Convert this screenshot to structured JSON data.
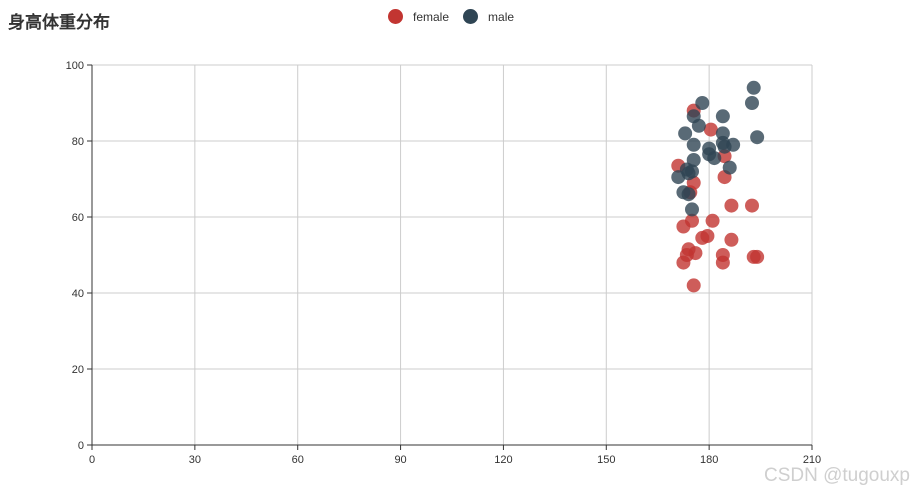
{
  "chart_data": {
    "type": "scatter",
    "title": "身高体重分布",
    "xlabel": "",
    "ylabel": "",
    "xlim": [
      0,
      210
    ],
    "ylim": [
      0,
      100
    ],
    "xticks": [
      0,
      30,
      60,
      90,
      120,
      150,
      180,
      210
    ],
    "yticks": [
      0,
      20,
      40,
      60,
      80,
      100
    ],
    "grid": true,
    "legend_position": "top-center",
    "series": [
      {
        "name": "female",
        "color": "#c23531",
        "points": [
          [
            175.5,
            88
          ],
          [
            180.5,
            83
          ],
          [
            184.5,
            76
          ],
          [
            171,
            73.5
          ],
          [
            184.5,
            70.5
          ],
          [
            175.5,
            69
          ],
          [
            174.5,
            66.5
          ],
          [
            186.5,
            63
          ],
          [
            192.5,
            63
          ],
          [
            175,
            59
          ],
          [
            181,
            59
          ],
          [
            172.5,
            57.5
          ],
          [
            178,
            54.5
          ],
          [
            179.5,
            55
          ],
          [
            186.5,
            54
          ],
          [
            174,
            51.5
          ],
          [
            176,
            50.5
          ],
          [
            173.5,
            50
          ],
          [
            184,
            50
          ],
          [
            193,
            49.5
          ],
          [
            194,
            49.5
          ],
          [
            172.5,
            48
          ],
          [
            184,
            48
          ],
          [
            175.5,
            42
          ]
        ]
      },
      {
        "name": "male",
        "color": "#2f4554",
        "points": [
          [
            193,
            94
          ],
          [
            178,
            90
          ],
          [
            192.5,
            90
          ],
          [
            175.5,
            86.5
          ],
          [
            184,
            86.5
          ],
          [
            177,
            84
          ],
          [
            173,
            82
          ],
          [
            184,
            82
          ],
          [
            194,
            81
          ],
          [
            184,
            79.5
          ],
          [
            187,
            79
          ],
          [
            175.5,
            79
          ],
          [
            180,
            78
          ],
          [
            184.5,
            78.5
          ],
          [
            180,
            76.5
          ],
          [
            181.5,
            75.5
          ],
          [
            175.5,
            75
          ],
          [
            186,
            73
          ],
          [
            173.5,
            72.5
          ],
          [
            175,
            72
          ],
          [
            174,
            71.5
          ],
          [
            171,
            70.5
          ],
          [
            172.5,
            66.5
          ],
          [
            174,
            66
          ],
          [
            175,
            62
          ]
        ]
      }
    ]
  },
  "watermark": "CSDN @tugouxp"
}
